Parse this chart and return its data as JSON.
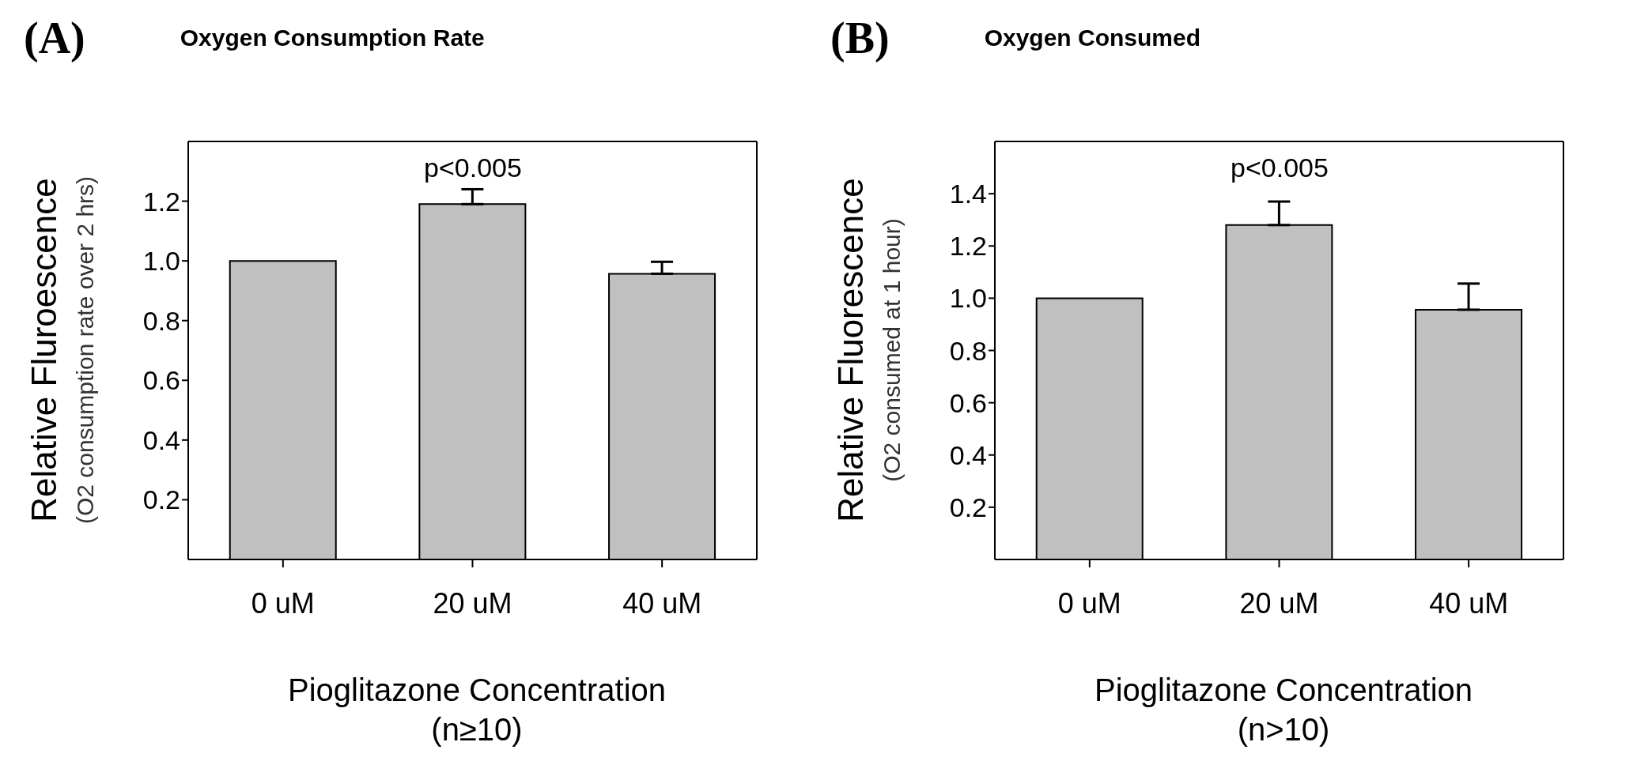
{
  "chart_data": [
    {
      "type": "bar",
      "title": "Oxygen Consumption Rate",
      "annotations": [
        "(A)",
        "p<0.005"
      ],
      "ylabel": "Relative Fluroescence\n(O2 consumption rate over 2 hrs)",
      "xlabel": "Pioglitazone Concentration\n(n≥10)",
      "categories": [
        "0 uM",
        "20 uM",
        "40 uM"
      ],
      "values": [
        1.0,
        1.19,
        0.957
      ],
      "errors": [
        null,
        0.05,
        0.04
      ],
      "color": "#c0c0c0",
      "ylim": [
        0,
        1.4
      ],
      "yticks": [
        0.2,
        0.4,
        0.6,
        0.8,
        {
          "value": 1,
          "label": "1.0"
        },
        1.2
      ]
    },
    {
      "type": "bar",
      "title": "Oxygen Consumed",
      "annotations": [
        "(B)",
        "p<0.005"
      ],
      "ylabel": "Relative Fluorescence\n(O2 consumed at 1 hour)",
      "xlabel": "Pioglitazone Concentration\n(n>10)",
      "categories": [
        "0 uM",
        "20 uM",
        "40 uM"
      ],
      "values": [
        1.0,
        1.28,
        0.956
      ],
      "errors": [
        null,
        0.09,
        0.1
      ],
      "color": "#c0c0c0",
      "ylim": [
        0,
        1.6
      ],
      "yticks": [
        0.2,
        0.4,
        0.6,
        0.8,
        {
          "value": 1,
          "label": "1.0"
        },
        1.2,
        1.4
      ]
    }
  ]
}
